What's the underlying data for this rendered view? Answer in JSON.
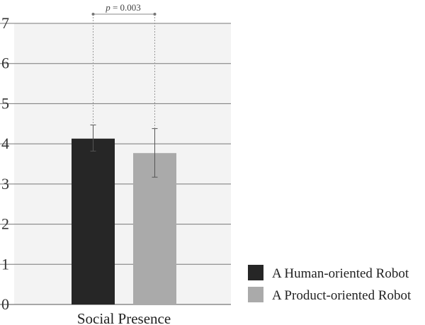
{
  "chart_data": {
    "type": "bar",
    "title": "",
    "xlabel": "",
    "ylabel": "",
    "categories": [
      "Social Presence"
    ],
    "ylim": [
      0,
      7
    ],
    "yticks": [
      "0",
      "1",
      "2",
      "3",
      "4",
      "5",
      "6",
      "7"
    ],
    "grid": true,
    "legend_position": "bottom-right",
    "series": [
      {
        "name": "A Human-oriented Robot",
        "values": [
          4.13
        ],
        "error_low": [
          3.82
        ],
        "error_high": [
          4.47
        ],
        "color": "#262626"
      },
      {
        "name": "A Product-oriented Robot",
        "values": [
          3.77
        ],
        "error_low": [
          3.17
        ],
        "error_high": [
          4.38
        ],
        "color": "#aaaaaa"
      }
    ],
    "annotation": {
      "p_symbol": "p",
      "p_text": " = 0.003"
    }
  }
}
